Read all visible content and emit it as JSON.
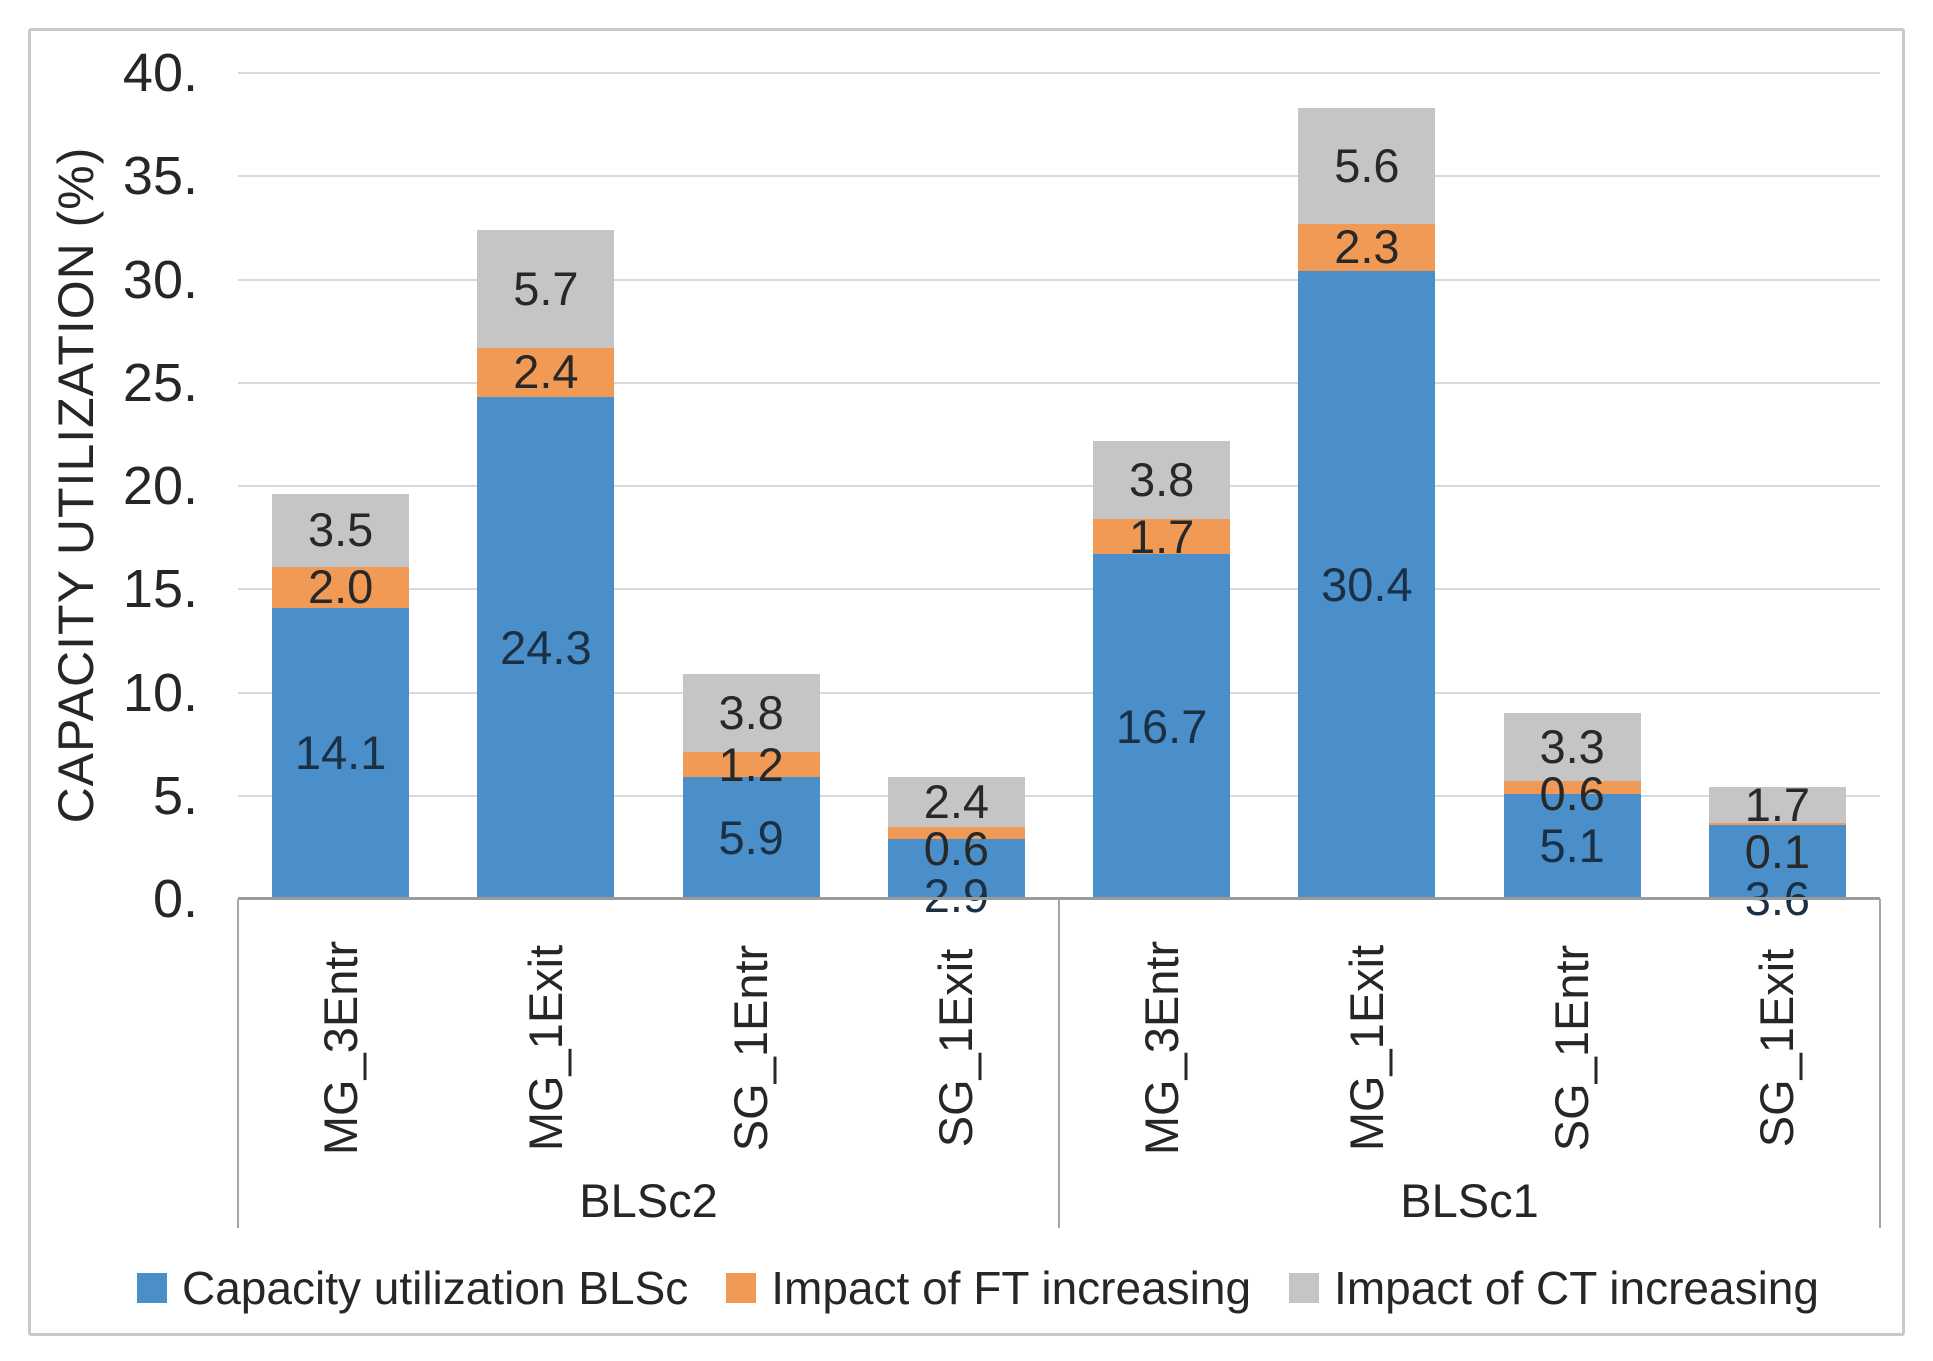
{
  "chart_data": {
    "type": "bar",
    "stacked": true,
    "title": "",
    "ylabel": "CAPACITY UTILIZATION (%)",
    "xlabel": "",
    "ylim": [
      0,
      40
    ],
    "ytick_step": 5,
    "ytick_labels": [
      "0.",
      "5.",
      "10.",
      "15.",
      "20.",
      "25.",
      "30.",
      "35.",
      "40."
    ],
    "grid": true,
    "legend_position": "bottom",
    "groups": [
      {
        "label": "BLSc2",
        "categories": [
          "MG_3Entr",
          "MG_1Exit",
          "SG_1Entr",
          "SG_1Exit"
        ]
      },
      {
        "label": "BLSc1",
        "categories": [
          "MG_3Entr",
          "MG_1Exit",
          "SG_1Entr",
          "SG_1Exit"
        ]
      }
    ],
    "series": [
      {
        "name": "Capacity utilization BLSc",
        "color": "#4a8fc9",
        "label_color": "#1b3044",
        "values": [
          14.1,
          24.3,
          5.9,
          2.9,
          16.7,
          30.4,
          5.1,
          3.6
        ]
      },
      {
        "name": "Impact of FT increasing",
        "color": "#f09a55",
        "label_color": "#282828",
        "values": [
          2.0,
          2.4,
          1.2,
          0.6,
          1.7,
          2.3,
          0.6,
          0.1
        ]
      },
      {
        "name": "Impact of CT increasing",
        "color": "#c5c5c5",
        "label_color": "#282828",
        "values": [
          3.5,
          5.7,
          3.8,
          2.4,
          3.8,
          5.6,
          3.3,
          1.7
        ]
      }
    ],
    "colors": {
      "gridline": "#d9d9d9",
      "axis_line": "#9b9b9b",
      "category_box_line": "#a6a6a6",
      "frame_border": "#c9c9c9",
      "text": "#262626",
      "background": "#ffffff"
    }
  }
}
